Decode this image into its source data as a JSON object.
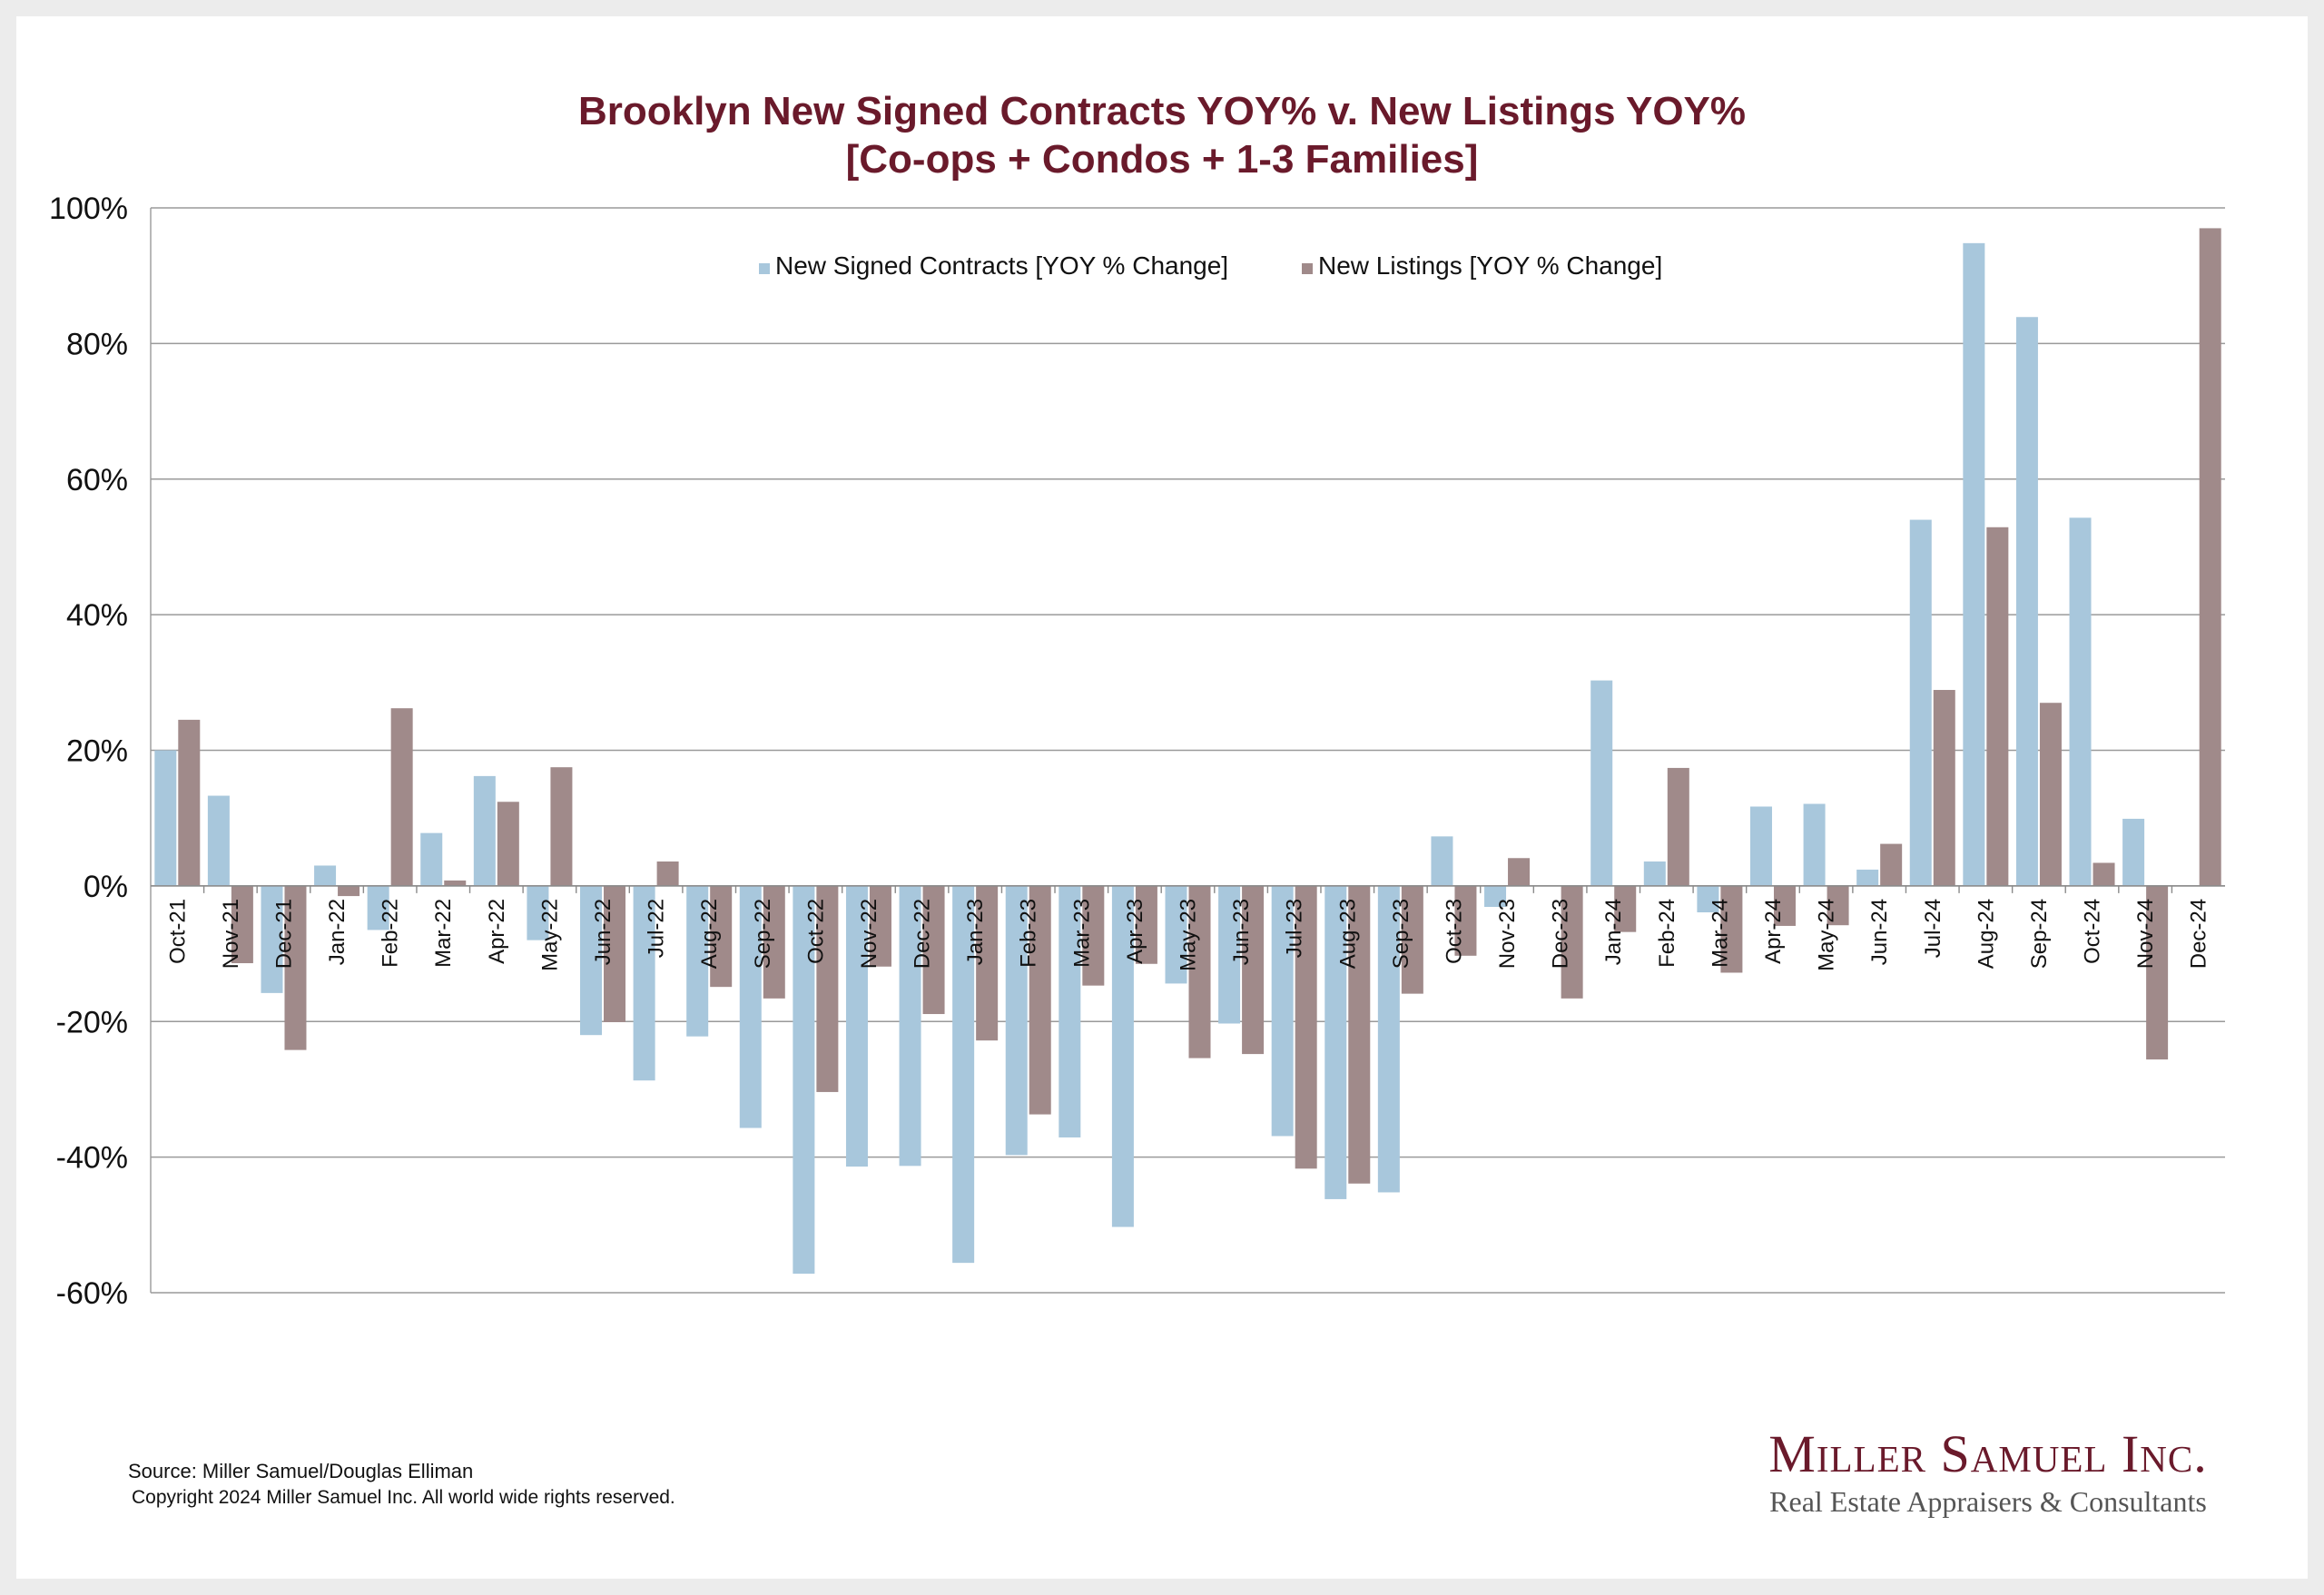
{
  "title_lines": [
    "Brooklyn New Signed Contracts YOY% v. New Listings YOY%",
    "[Co-ops + Condos + 1-3 Families]"
  ],
  "footer": {
    "source": "Source: Miller Samuel/Douglas Elliman",
    "copyright": "Copyright 2024 Miller Samuel Inc.  All world wide rights reserved."
  },
  "logo": {
    "name": "Miller Samuel Inc.",
    "tagline": "Real Estate Appraisers & Consultants"
  },
  "colors": {
    "contracts": "#a8c7dc",
    "listings": "#a08a8a",
    "title": "#6a1a2b"
  },
  "chart_data": {
    "type": "bar",
    "title": "Brooklyn New Signed Contracts YOY% v. New Listings YOY% [Co-ops + Condos + 1-3 Families]",
    "xlabel": "",
    "ylabel": "",
    "ylim": [
      -60,
      100
    ],
    "yticks": [
      100,
      80,
      60,
      40,
      20,
      0,
      -20,
      -40,
      -60
    ],
    "ytick_labels": [
      "100%",
      "80%",
      "60%",
      "40%",
      "20%",
      "0%",
      "-20%",
      "-40%",
      "-60%"
    ],
    "grid": true,
    "legend_position": "top-center",
    "categories": [
      "Oct-21",
      "Nov-21",
      "Dec-21",
      "Jan-22",
      "Feb-22",
      "Mar-22",
      "Apr-22",
      "May-22",
      "Jun-22",
      "Jul-22",
      "Aug-22",
      "Sep-22",
      "Oct-22",
      "Nov-22",
      "Dec-22",
      "Jan-23",
      "Feb-23",
      "Mar-23",
      "Apr-23",
      "May-23",
      "Jun-23",
      "Jul-23",
      "Aug-23",
      "Sep-23",
      "Oct-23",
      "Nov-23",
      "Dec-23",
      "Jan-24",
      "Feb-24",
      "Mar-24",
      "Apr-24",
      "May-24",
      "Jun-24",
      "Jul-24",
      "Aug-24",
      "Sep-24",
      "Oct-24",
      "Nov-24",
      "Dec-24"
    ],
    "series": [
      {
        "name": "New Signed Contracts [YOY % Change]",
        "values": [
          20,
          13.3,
          -15.8,
          3,
          -6.5,
          7.8,
          16.2,
          -8,
          -22,
          -28.7,
          -22.2,
          -35.7,
          -57.2,
          -41.4,
          -41.3,
          -55.6,
          -39.7,
          -37.1,
          -50.3,
          -14.4,
          -20.3,
          -36.9,
          -46.2,
          -45.2,
          7.3,
          -3.1,
          0,
          30.3,
          3.6,
          -3.9,
          11.7,
          12.1,
          2.4,
          54,
          94.8,
          83.9,
          54.3,
          9.9,
          0
        ]
      },
      {
        "name": "New Listings [YOY % Change]",
        "values": [
          24.5,
          -11.4,
          -24.2,
          -1.5,
          26.2,
          0.8,
          12.4,
          17.5,
          -20.1,
          3.6,
          -14.9,
          -16.6,
          -30.4,
          -11.9,
          -18.9,
          -22.8,
          -33.7,
          -14.7,
          -11.5,
          -25.4,
          -24.8,
          -41.7,
          -43.9,
          -15.9,
          -10.3,
          4.1,
          -16.6,
          -6.8,
          17.4,
          -12.8,
          -5.9,
          -5.8,
          6.2,
          28.9,
          52.9,
          27,
          3.4,
          -25.6,
          97
        ]
      }
    ]
  }
}
